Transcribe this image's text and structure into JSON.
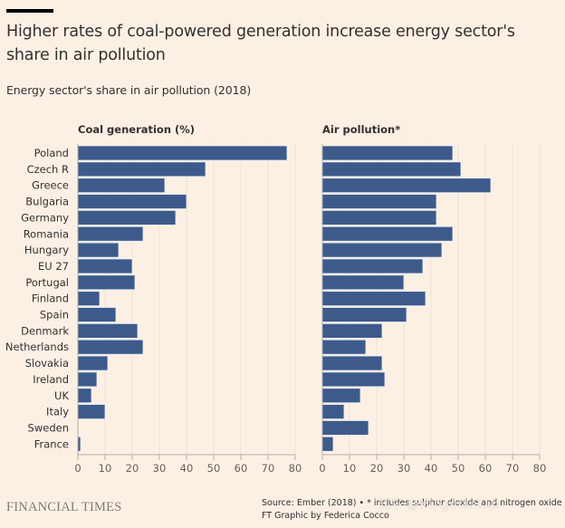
{
  "header": {
    "title": "Higher rates of coal-powered generation increase energy sector's share in air pollution",
    "subtitle": "Energy sector's share in air pollution (2018)"
  },
  "footer": {
    "publisher": "FINANCIAL TIMES",
    "source_line1": "Source: Ember (2018) • * includes sulphur dioxide and nitrogen oxide",
    "source_line2": "FT Graphic by Federica Cocco",
    "watermark": "知乎 @MingmanLab"
  },
  "colors": {
    "background": "#fcf0e5",
    "bar": "#3d5a8a",
    "bar_edge": "#e7ecf4",
    "gridline": "#eee2d6",
    "axis": "#b8aea4",
    "text": "#33302e"
  },
  "chart_data": [
    {
      "type": "bar",
      "orientation": "horizontal",
      "title": "Coal generation (%)",
      "categories": [
        "Poland",
        "Czech R",
        "Greece",
        "Bulgaria",
        "Germany",
        "Romania",
        "Hungary",
        "EU 27",
        "Portugal",
        "Finland",
        "Spain",
        "Denmark",
        "Netherlands",
        "Slovakia",
        "Ireland",
        "UK",
        "Italy",
        "Sweden",
        "France"
      ],
      "values": [
        77,
        47,
        32,
        40,
        36,
        24,
        15,
        20,
        21,
        8,
        14,
        22,
        24,
        11,
        7,
        5,
        10,
        0,
        1
      ],
      "xlim": [
        0,
        80
      ],
      "xticks": [
        0,
        10,
        20,
        30,
        40,
        50,
        60,
        70,
        80
      ],
      "grid": true,
      "xlabel": "",
      "ylabel": ""
    },
    {
      "type": "bar",
      "orientation": "horizontal",
      "title": "Air pollution*",
      "categories": [
        "Poland",
        "Czech R",
        "Greece",
        "Bulgaria",
        "Germany",
        "Romania",
        "Hungary",
        "EU 27",
        "Portugal",
        "Finland",
        "Spain",
        "Denmark",
        "Netherlands",
        "Slovakia",
        "Ireland",
        "UK",
        "Italy",
        "Sweden",
        "France"
      ],
      "values": [
        48,
        51,
        62,
        42,
        42,
        48,
        44,
        37,
        30,
        38,
        31,
        22,
        16,
        22,
        23,
        14,
        8,
        17,
        4
      ],
      "xlim": [
        0,
        80
      ],
      "xticks": [
        0,
        10,
        20,
        30,
        40,
        50,
        60,
        70,
        80
      ],
      "grid": true,
      "xlabel": "",
      "ylabel": ""
    }
  ]
}
